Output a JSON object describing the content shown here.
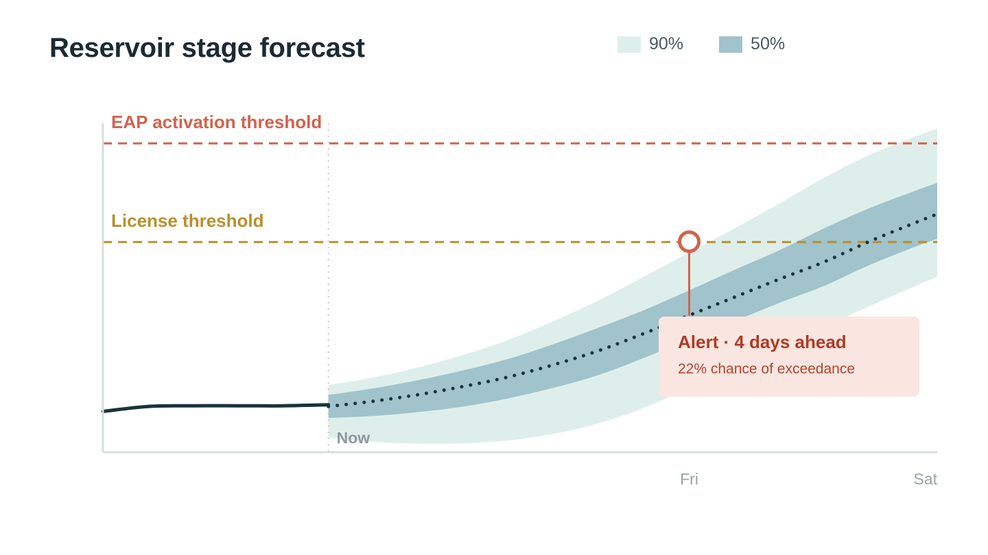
{
  "title": "Reservoir stage forecast",
  "legend": [
    {
      "label": "90%",
      "color": "#deefeb"
    },
    {
      "label": "50%",
      "color": "#a1c3cb"
    }
  ],
  "colors": {
    "observed": "#1b333b",
    "median": "#1b333b",
    "eap": "#d1634c",
    "license": "#b8902c",
    "axis": "#d6dfde",
    "tick": "#9aa3a6"
  },
  "chart_data": {
    "type": "area",
    "x_ticks": [
      "Now",
      "Fri",
      "Sat"
    ],
    "y_range": [
      0,
      1
    ],
    "observed": {
      "x": [
        -2.5,
        -2.0,
        -1.5,
        -1.0,
        -0.5,
        0
      ],
      "y": [
        0.12,
        0.135,
        0.137,
        0.137,
        0.137,
        0.14
      ]
    },
    "forecast": {
      "x": [
        0,
        0.5,
        1,
        1.5,
        2,
        2.5,
        3,
        3.5,
        4,
        4.5,
        5,
        5.5,
        6,
        6.5,
        6.75
      ],
      "median": [
        0.135,
        0.151,
        0.171,
        0.196,
        0.225,
        0.262,
        0.305,
        0.357,
        0.412,
        0.467,
        0.522,
        0.575,
        0.637,
        0.693,
        0.72
      ],
      "p50_low": [
        0.1,
        0.106,
        0.118,
        0.135,
        0.16,
        0.192,
        0.231,
        0.283,
        0.339,
        0.394,
        0.45,
        0.502,
        0.565,
        0.62,
        0.645
      ],
      "p50_high": [
        0.17,
        0.19,
        0.215,
        0.245,
        0.28,
        0.325,
        0.375,
        0.428,
        0.488,
        0.55,
        0.61,
        0.677,
        0.738,
        0.79,
        0.815
      ],
      "p90_low": [
        0.04,
        0.027,
        0.022,
        0.023,
        0.032,
        0.052,
        0.084,
        0.131,
        0.191,
        0.253,
        0.315,
        0.377,
        0.44,
        0.5,
        0.53
      ],
      "p90_high": [
        0.2,
        0.223,
        0.254,
        0.292,
        0.338,
        0.395,
        0.458,
        0.53,
        0.603,
        0.676,
        0.752,
        0.831,
        0.9,
        0.955,
        0.98
      ]
    },
    "thresholds": [
      {
        "label": "EAP activation threshold",
        "value": 0.935
      },
      {
        "label": "License threshold",
        "value": 0.635
      }
    ],
    "alert_marker": {
      "x": 4.0,
      "y": 0.636
    },
    "annotation": {
      "title": "Alert · 4 days ahead",
      "subtitle": "22% chance of exceedance"
    }
  }
}
